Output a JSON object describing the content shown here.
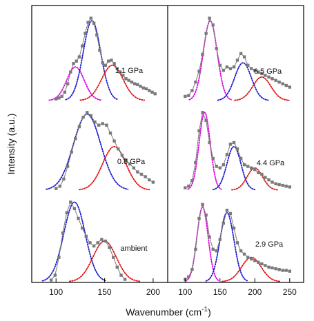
{
  "figure": {
    "ylabel": "Intensity (a.u.)",
    "xlabel_main": "Wavenumber (cm",
    "xlabel_sup": "-1",
    "xlabel_end": ")"
  },
  "colors": {
    "data": "#7a7a7a",
    "magenta": "#e000e0",
    "blue": "#1a1acc",
    "red": "#dd1111",
    "frame": "#000000"
  },
  "chart_data": [
    {
      "type": "line",
      "panel": "left",
      "xlim": [
        75,
        215
      ],
      "xticks": [
        100,
        150,
        200
      ],
      "y_scale": "arbitrary",
      "grid": false,
      "spectra": [
        {
          "label": "1.1 GPa",
          "data_color": "gray",
          "x": [
            100,
            103,
            106,
            109,
            112,
            115,
            118,
            121,
            124,
            127,
            130,
            133,
            136,
            139,
            142,
            145,
            148,
            151,
            154,
            157,
            160,
            163,
            166,
            169,
            172,
            175,
            178,
            181,
            184,
            187,
            190,
            193,
            196,
            199,
            202
          ],
          "y": [
            0.02,
            0.03,
            0.05,
            0.1,
            0.2,
            0.34,
            0.44,
            0.47,
            0.52,
            0.65,
            0.8,
            0.93,
            0.98,
            0.92,
            0.78,
            0.6,
            0.45,
            0.42,
            0.47,
            0.48,
            0.44,
            0.38,
            0.34,
            0.3,
            0.26,
            0.24,
            0.22,
            0.2,
            0.19,
            0.17,
            0.15,
            0.14,
            0.12,
            0.1,
            0.08
          ],
          "fits": [
            {
              "color": "magenta",
              "center": 120,
              "amplitude": 0.4,
              "width": 9
            },
            {
              "color": "blue",
              "center": 137,
              "amplitude": 0.95,
              "width": 9
            },
            {
              "color": "red",
              "center": 158,
              "amplitude": 0.42,
              "width": 11
            }
          ]
        },
        {
          "label": "0.8 GPa",
          "data_color": "gray",
          "x": [
            100,
            104,
            108,
            112,
            116,
            120,
            124,
            128,
            132,
            136,
            140,
            144,
            148,
            152,
            156,
            160,
            164,
            168,
            172,
            176,
            180,
            184,
            188,
            192,
            196,
            200
          ],
          "y": [
            0.02,
            0.05,
            0.14,
            0.3,
            0.48,
            0.65,
            0.8,
            0.92,
            0.98,
            0.94,
            0.86,
            0.82,
            0.84,
            0.82,
            0.72,
            0.62,
            0.52,
            0.44,
            0.38,
            0.33,
            0.28,
            0.23,
            0.2,
            0.17,
            0.13,
            0.1
          ],
          "fits": [
            {
              "color": "blue",
              "center": 132,
              "amplitude": 0.96,
              "width": 14
            },
            {
              "color": "red",
              "center": 160,
              "amplitude": 0.55,
              "width": 12
            }
          ]
        },
        {
          "label": "ambient",
          "data_color": "gray",
          "x": [
            95,
            99,
            103,
            107,
            111,
            115,
            119,
            123,
            127,
            131,
            135,
            139,
            143,
            147,
            151,
            155,
            159,
            163,
            167,
            171
          ],
          "y": [
            0.02,
            0.08,
            0.3,
            0.6,
            0.85,
            0.98,
            0.9,
            0.78,
            0.66,
            0.56,
            0.48,
            0.44,
            0.48,
            0.52,
            0.5,
            0.42,
            0.3,
            0.18,
            0.08,
            0.03
          ],
          "fits": [
            {
              "color": "blue",
              "center": 119,
              "amplitude": 0.98,
              "width": 11
            },
            {
              "color": "red",
              "center": 150,
              "amplitude": 0.5,
              "width": 12
            }
          ]
        }
      ]
    },
    {
      "type": "line",
      "panel": "right",
      "xlim": [
        75,
        270
      ],
      "xticks": [
        100,
        150,
        200,
        250
      ],
      "y_scale": "arbitrary",
      "grid": false,
      "spectra": [
        {
          "label": "6.5 GPa",
          "data_color": "gray",
          "x": [
            100,
            105,
            110,
            115,
            120,
            125,
            130,
            135,
            140,
            145,
            150,
            155,
            160,
            165,
            170,
            175,
            180,
            185,
            190,
            195,
            200,
            205,
            210,
            215,
            220,
            225,
            230,
            235,
            240,
            245,
            250
          ],
          "y": [
            0.05,
            0.06,
            0.12,
            0.22,
            0.35,
            0.55,
            0.8,
            0.98,
            0.9,
            0.62,
            0.42,
            0.36,
            0.4,
            0.38,
            0.4,
            0.48,
            0.56,
            0.52,
            0.42,
            0.38,
            0.36,
            0.34,
            0.32,
            0.3,
            0.28,
            0.26,
            0.24,
            0.22,
            0.2,
            0.18,
            0.16
          ],
          "fits": [
            {
              "color": "magenta",
              "center": 136,
              "amplitude": 0.95,
              "width": 10
            },
            {
              "color": "blue",
              "center": 183,
              "amplitude": 0.45,
              "width": 12
            },
            {
              "color": "red",
              "center": 210,
              "amplitude": 0.28,
              "width": 13
            }
          ]
        },
        {
          "label": "4.4 GPa",
          "data_color": "gray",
          "x": [
            100,
            105,
            110,
            115,
            120,
            125,
            130,
            135,
            140,
            145,
            150,
            155,
            160,
            165,
            170,
            175,
            180,
            185,
            190,
            195,
            200,
            205,
            210,
            215,
            220,
            225,
            230,
            235,
            240,
            245,
            250
          ],
          "y": [
            0.03,
            0.05,
            0.12,
            0.35,
            0.75,
            0.98,
            0.88,
            0.6,
            0.4,
            0.3,
            0.28,
            0.32,
            0.45,
            0.58,
            0.6,
            0.52,
            0.4,
            0.32,
            0.3,
            0.28,
            0.26,
            0.22,
            0.2,
            0.16,
            0.13,
            0.1,
            0.08,
            0.07,
            0.06,
            0.05,
            0.04
          ],
          "fits": [
            {
              "color": "magenta",
              "center": 128,
              "amplitude": 0.98,
              "width": 8
            },
            {
              "color": "blue",
              "center": 170,
              "amplitude": 0.55,
              "width": 10
            },
            {
              "color": "red",
              "center": 200,
              "amplitude": 0.28,
              "width": 11
            }
          ]
        },
        {
          "label": "2.9 GPa",
          "data_color": "gray",
          "x": [
            100,
            105,
            110,
            115,
            120,
            125,
            130,
            135,
            140,
            145,
            150,
            155,
            160,
            165,
            170,
            175,
            180,
            185,
            190,
            195,
            200,
            205,
            210,
            215,
            220,
            225,
            230,
            235,
            240,
            245,
            250
          ],
          "y": [
            0.03,
            0.06,
            0.15,
            0.4,
            0.78,
            0.95,
            0.82,
            0.55,
            0.4,
            0.38,
            0.52,
            0.72,
            0.88,
            0.84,
            0.66,
            0.48,
            0.38,
            0.34,
            0.3,
            0.28,
            0.26,
            0.24,
            0.22,
            0.2,
            0.18,
            0.17,
            0.16,
            0.15,
            0.14,
            0.14,
            0.13
          ],
          "fits": [
            {
              "color": "magenta",
              "center": 125,
              "amplitude": 0.92,
              "width": 8
            },
            {
              "color": "blue",
              "center": 160,
              "amplitude": 0.85,
              "width": 10
            },
            {
              "color": "red",
              "center": 195,
              "amplitude": 0.3,
              "width": 14
            }
          ]
        }
      ]
    }
  ]
}
